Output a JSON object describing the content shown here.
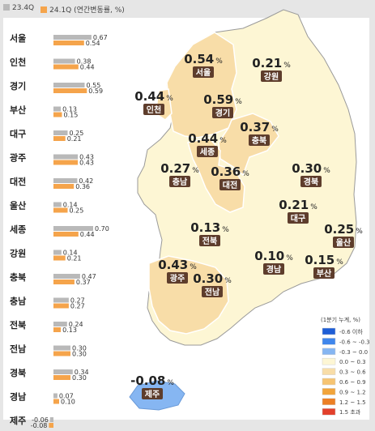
{
  "legend_top": [
    {
      "label": "23.4Q",
      "color": "#b9b9b9"
    },
    {
      "label": "24.1Q (연간변동률, %)",
      "color": "#f5a44b"
    }
  ],
  "chart_data": {
    "type": "bar",
    "orientation": "horizontal",
    "categories": [
      "서울",
      "인천",
      "경기",
      "부산",
      "대구",
      "광주",
      "대전",
      "울산",
      "세종",
      "강원",
      "충북",
      "충남",
      "전북",
      "전남",
      "경북",
      "경남",
      "제주"
    ],
    "series": [
      {
        "name": "23.4Q",
        "color": "#b9b9b9",
        "values": [
          0.67,
          0.38,
          0.55,
          0.13,
          0.25,
          0.43,
          0.42,
          0.14,
          0.7,
          0.14,
          0.47,
          0.27,
          0.24,
          0.3,
          0.34,
          0.07,
          -0.06
        ]
      },
      {
        "name": "24.1Q",
        "color": "#f5a44b",
        "values": [
          0.54,
          0.44,
          0.59,
          0.15,
          0.21,
          0.43,
          0.36,
          0.25,
          0.44,
          0.21,
          0.37,
          0.27,
          0.13,
          0.3,
          0.3,
          0.1,
          -0.08
        ]
      }
    ],
    "value_labels_23_4Q": [
      "0.67",
      "0.38",
      "0.55",
      "0.13",
      "0.25",
      "0.43",
      "0.42",
      "0.14",
      "0.70",
      "0.14",
      "0.47",
      "0.27",
      "0.24",
      "0.30",
      "0.34",
      "0.07",
      "-0.06"
    ],
    "value_labels_24_1Q": [
      "0.54",
      "0.44",
      "0.59",
      "0.15",
      "0.21",
      "0.43",
      "0.36",
      "0.25",
      "0.44",
      "0.21",
      "0.37",
      "0.27",
      "0.13",
      "0.30",
      "0.30",
      "0.10",
      "-0.08"
    ],
    "xlim": [
      -0.1,
      0.8
    ]
  },
  "map": {
    "regions": [
      {
        "name": "서울",
        "value": "0.54"
      },
      {
        "name": "인천",
        "value": "0.44"
      },
      {
        "name": "경기",
        "value": "0.59"
      },
      {
        "name": "강원",
        "value": "0.21"
      },
      {
        "name": "충북",
        "value": "0.37"
      },
      {
        "name": "세종",
        "value": "0.44"
      },
      {
        "name": "충남",
        "value": "0.27"
      },
      {
        "name": "대전",
        "value": "0.36"
      },
      {
        "name": "경북",
        "value": "0.30"
      },
      {
        "name": "대구",
        "value": "0.21"
      },
      {
        "name": "전북",
        "value": "0.13"
      },
      {
        "name": "울산",
        "value": "0.25"
      },
      {
        "name": "경남",
        "value": "0.10"
      },
      {
        "name": "부산",
        "value": "0.15"
      },
      {
        "name": "광주",
        "value": "0.43"
      },
      {
        "name": "전남",
        "value": "0.30"
      },
      {
        "name": "제주",
        "value": "-0.08"
      }
    ],
    "unit": "%",
    "scale_title": "(1분기 누계, %)",
    "scale": [
      {
        "label": "-0.6 이하",
        "color": "#1e5ed6"
      },
      {
        "label": "-0.6 ~ -0.3",
        "color": "#3f86ec"
      },
      {
        "label": "-0.3 ~ 0.0",
        "color": "#86b6f2"
      },
      {
        "label": "0.0 ~ 0.3",
        "color": "#fdf6d4"
      },
      {
        "label": "0.3 ~ 0.6",
        "color": "#f8dda8"
      },
      {
        "label": "0.6 ~ 0.9",
        "color": "#f6c472"
      },
      {
        "label": "0.9 ~ 1.2",
        "color": "#f1a43b"
      },
      {
        "label": "1.2 ~ 1.5",
        "color": "#ec7f24"
      },
      {
        "label": "1.5 초과",
        "color": "#e2402b"
      }
    ]
  }
}
